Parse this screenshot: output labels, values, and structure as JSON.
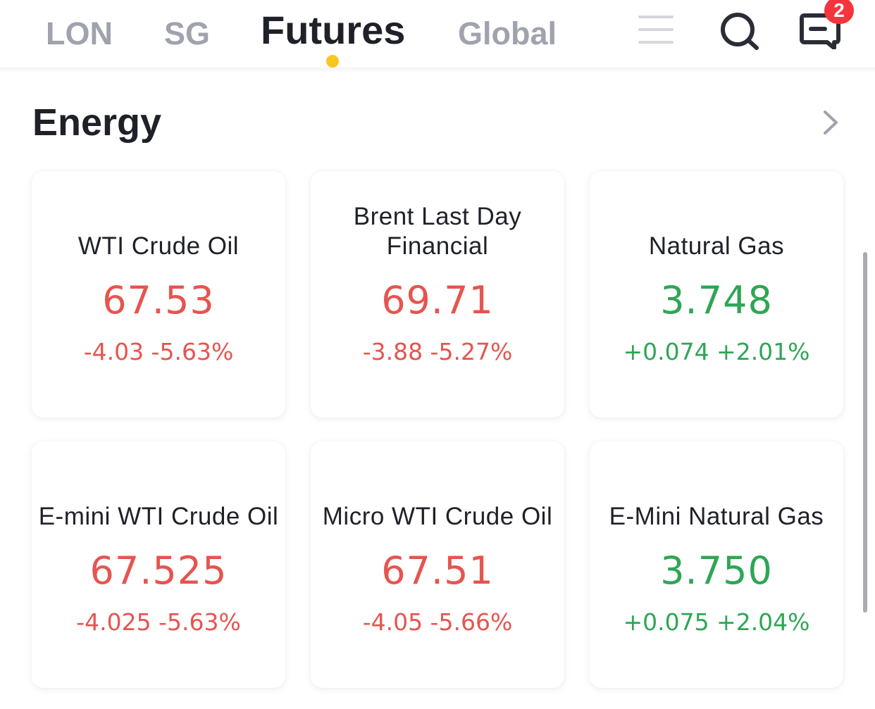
{
  "nav": {
    "tabs": [
      {
        "label": "LON"
      },
      {
        "label": "SG"
      },
      {
        "label": "Futures"
      },
      {
        "label": "Global"
      }
    ],
    "active_tab": "Futures",
    "icons": [
      "menu-icon",
      "search-icon",
      "message-icon"
    ],
    "message_badge": "2",
    "accent_color": "#f5c81f"
  },
  "section": {
    "title": "Energy",
    "more_icon": "chevron-right-icon"
  },
  "cards": [
    {
      "name": "WTI Crude Oil",
      "price": "67.53",
      "change": "-4.03 -5.63%",
      "trend": "down"
    },
    {
      "name": "Brent Last Day Financial",
      "price": "69.71",
      "change": "-3.88 -5.27%",
      "trend": "down"
    },
    {
      "name": "Natural Gas",
      "price": "3.748",
      "change": "+0.074 +2.01%",
      "trend": "up"
    },
    {
      "name": "E-mini WTI Crude Oil",
      "price": "67.525",
      "change": "-4.025 -5.63%",
      "trend": "down"
    },
    {
      "name": "Micro WTI Crude Oil",
      "price": "67.51",
      "change": "-4.05 -5.66%",
      "trend": "down"
    },
    {
      "name": "E-Mini Natural Gas",
      "price": "3.750",
      "change": "+0.075 +2.04%",
      "trend": "up"
    }
  ],
  "colors": {
    "down": "#e5554f",
    "up": "#2ea655",
    "badge": "#f5343b"
  }
}
